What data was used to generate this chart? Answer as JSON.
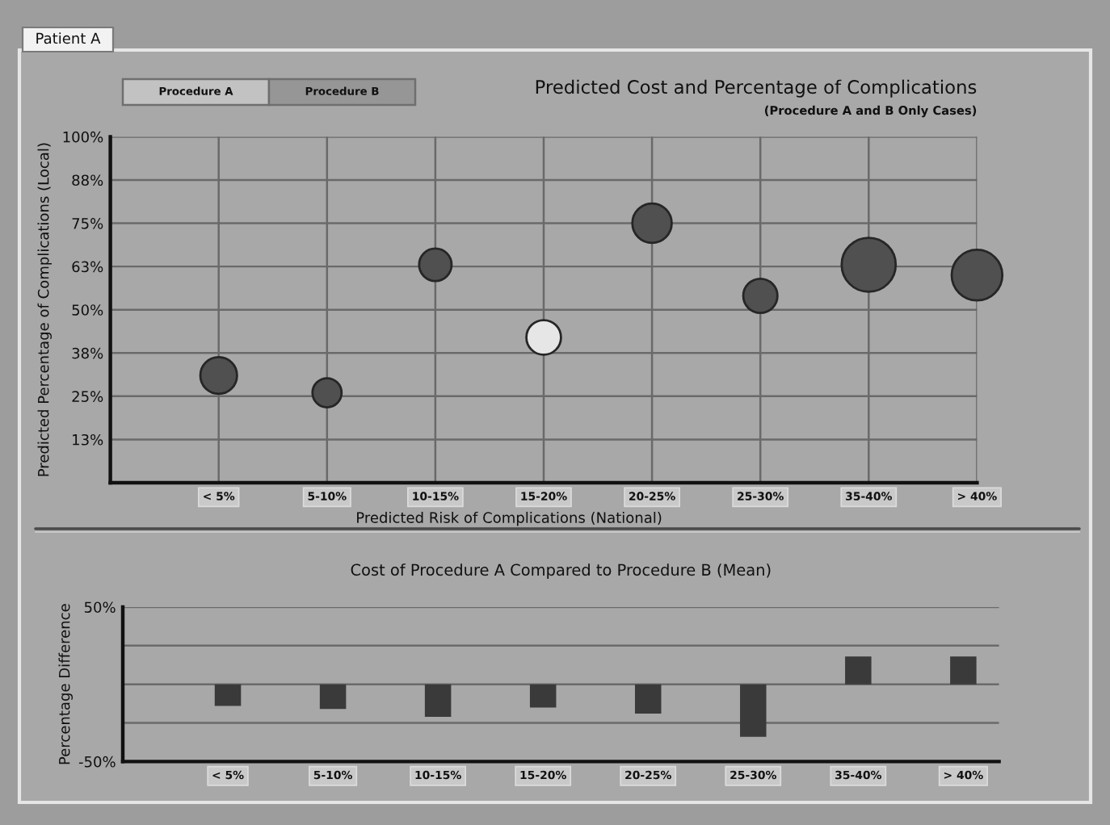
{
  "chart_data": [
    {
      "type": "bubble",
      "title": "Predicted Cost and Percentage of Complications",
      "subtitle": "(Procedure A and B Only Cases)",
      "xlabel": "Predicted Risk of Complications (National)",
      "ylabel": "Predicted Percentage of Complications (Local)",
      "annotations": [
        "Patient A",
        "Procedure A",
        "Procedure B"
      ],
      "categories": [
        "< 5%",
        "5-10%",
        "10-15%",
        "15-20%",
        "20-25%",
        "25-30%",
        "35-40%",
        "> 40%"
      ],
      "values": [
        31,
        26,
        63,
        42,
        75,
        54,
        63,
        60
      ],
      "sizes": [
        0.46,
        0.29,
        0.36,
        0.41,
        0.53,
        0.4,
        1,
        0.88
      ],
      "colors": [
        "#505050",
        "#505050",
        "#505050",
        "#e6e6e6",
        "#505050",
        "#505050",
        "#505050",
        "#505050"
      ],
      "ylim": [
        0,
        100
      ],
      "yticks": [
        {
          "value": 12.5,
          "label": "13%"
        },
        {
          "value": 25,
          "label": "25%"
        },
        {
          "value": 37.5,
          "label": "38%"
        },
        {
          "value": 50,
          "label": "50%"
        },
        {
          "value": 62.5,
          "label": "63%"
        },
        {
          "value": 75,
          "label": "75%"
        },
        {
          "value": 87.5,
          "label": "88%"
        },
        {
          "value": 100,
          "label": "100%"
        }
      ],
      "grid": true
    },
    {
      "type": "bar",
      "title": "Cost of Procedure A Compared to Procedure B (Mean)",
      "ylabel": "Percentage Difference",
      "categories": [
        "< 5%",
        "5-10%",
        "10-15%",
        "15-20%",
        "20-25%",
        "25-30%",
        "35-40%",
        "> 40%"
      ],
      "values": [
        -14,
        -16,
        -21,
        -15,
        -19,
        -34,
        18,
        18
      ],
      "color": "#3a3a3a",
      "ylim": [
        -50,
        50
      ],
      "yticks": [
        {
          "value": -50,
          "label": "-50%"
        },
        {
          "value": -25,
          "label": null
        },
        {
          "value": 0,
          "label": null
        },
        {
          "value": 25,
          "label": null
        },
        {
          "value": 50,
          "label": "50%"
        }
      ],
      "grid": "y"
    }
  ]
}
